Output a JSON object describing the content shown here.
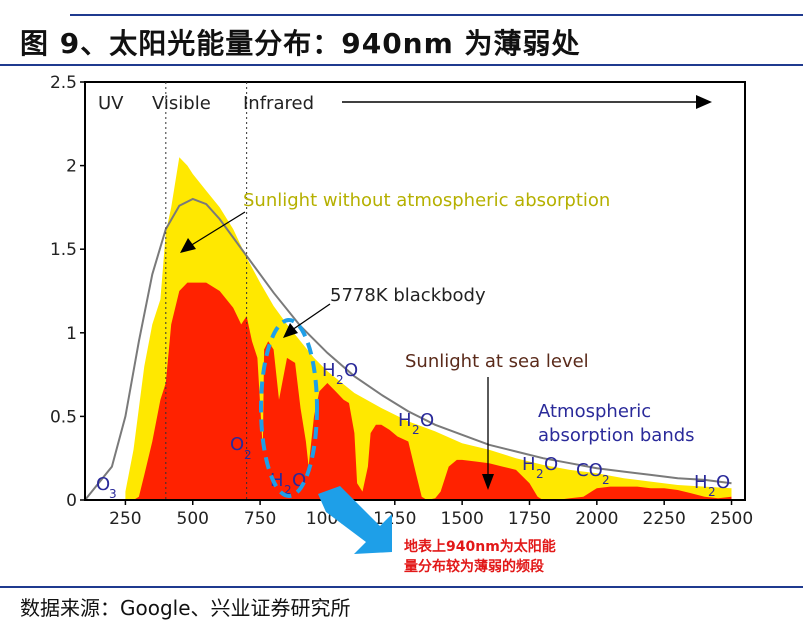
{
  "figure": {
    "title": "图 9、太阳光能量分布：940nm 为薄弱处",
    "source": "数据来源：Google、兴业证券研究所"
  },
  "chart_data": {
    "type": "area",
    "x_ticks": [
      250,
      500,
      750,
      1000,
      1250,
      1500,
      1750,
      2000,
      2250,
      2500
    ],
    "y_ticks": [
      0,
      0.5,
      1,
      1.5,
      2,
      2.5
    ],
    "xlim": [
      100,
      2550
    ],
    "ylim": [
      0,
      2.5
    ],
    "grid": false,
    "regions": {
      "uv": "UV",
      "visible": "Visible",
      "infrared": "Infrared",
      "uv_visible_boundary": 400,
      "visible_infrared_boundary": 700
    },
    "series": [
      {
        "name": "5778K blackbody",
        "color": "#7a7a7a",
        "x": [
          100,
          200,
          250,
          300,
          350,
          400,
          450,
          500,
          550,
          600,
          700,
          800,
          900,
          1000,
          1100,
          1200,
          1300,
          1400,
          1500,
          1600,
          1700,
          1800,
          1900,
          2000,
          2100,
          2200,
          2300,
          2400,
          2500
        ],
        "values": [
          0,
          0.2,
          0.5,
          0.95,
          1.35,
          1.62,
          1.76,
          1.8,
          1.77,
          1.68,
          1.46,
          1.24,
          1.04,
          0.88,
          0.74,
          0.63,
          0.53,
          0.45,
          0.39,
          0.33,
          0.29,
          0.25,
          0.22,
          0.19,
          0.17,
          0.15,
          0.13,
          0.12,
          0.1
        ]
      },
      {
        "name": "Sunlight without atmospheric absorption",
        "color": "#ffe800",
        "x": [
          250,
          280,
          300,
          320,
          350,
          380,
          400,
          420,
          450,
          480,
          500,
          550,
          600,
          650,
          700,
          750,
          800,
          850,
          900,
          950,
          1000,
          1100,
          1200,
          1300,
          1400,
          1500,
          1600,
          1700,
          1800,
          1900,
          2000,
          2100,
          2200,
          2300,
          2400,
          2500
        ],
        "values": [
          0.05,
          0.3,
          0.55,
          0.8,
          1.05,
          1.2,
          1.6,
          1.75,
          2.05,
          2.0,
          1.95,
          1.85,
          1.75,
          1.62,
          1.45,
          1.3,
          1.16,
          1.05,
          0.95,
          0.85,
          0.77,
          0.64,
          0.55,
          0.47,
          0.41,
          0.34,
          0.3,
          0.25,
          0.21,
          0.18,
          0.16,
          0.13,
          0.11,
          0.09,
          0.08,
          0.07
        ]
      },
      {
        "name": "Sunlight at sea level",
        "color": "#ff2200",
        "x": [
          250,
          280,
          300,
          320,
          350,
          380,
          400,
          420,
          450,
          480,
          500,
          550,
          600,
          650,
          680,
          700,
          720,
          740,
          760,
          765,
          780,
          800,
          820,
          850,
          880,
          900,
          920,
          930,
          950,
          970,
          1000,
          1030,
          1060,
          1080,
          1100,
          1110,
          1130,
          1150,
          1160,
          1180,
          1200,
          1230,
          1260,
          1300,
          1330,
          1350,
          1370,
          1400,
          1420,
          1450,
          1480,
          1500,
          1550,
          1600,
          1650,
          1700,
          1750,
          1780,
          1800,
          1820,
          1850,
          1900,
          1950,
          1980,
          2000,
          2050,
          2100,
          2150,
          2200,
          2250,
          2300,
          2350,
          2400,
          2450,
          2500
        ],
        "values": [
          0,
          0,
          0.02,
          0.15,
          0.35,
          0.6,
          0.7,
          1.05,
          1.25,
          1.3,
          1.3,
          1.3,
          1.25,
          1.15,
          1.05,
          1.1,
          0.95,
          0.85,
          0.3,
          0.9,
          0.95,
          0.9,
          0.6,
          0.85,
          0.82,
          0.55,
          0.35,
          0.2,
          0.5,
          0.65,
          0.7,
          0.65,
          0.6,
          0.58,
          0.4,
          0.1,
          0.05,
          0.2,
          0.4,
          0.45,
          0.45,
          0.42,
          0.38,
          0.35,
          0.15,
          0.02,
          0.0,
          0.01,
          0.05,
          0.2,
          0.24,
          0.24,
          0.23,
          0.22,
          0.2,
          0.18,
          0.1,
          0.02,
          0.0,
          0.0,
          0.0,
          0.01,
          0.02,
          0.05,
          0.07,
          0.08,
          0.08,
          0.08,
          0.07,
          0.07,
          0.06,
          0.04,
          0.02,
          0.01,
          0.02
        ]
      }
    ],
    "annotations": {
      "without_atm": "Sunlight without atmospheric absorption",
      "blackbody": "5778K blackbody",
      "sea_level": "Sunlight at sea level",
      "atm_bands_1": "Atmospheric",
      "atm_bands_2": "absorption bands",
      "o3": "O",
      "o3_sub": "3",
      "o2": "O",
      "o2_sub": "2",
      "h2o": "H",
      "h2o_sub": "2",
      "h2o_o": "O",
      "co2": "CO",
      "co2_sub": "2",
      "highlight_note_1": "地表上940nm为太阳能",
      "highlight_note_2": "量分布较为薄弱的频段"
    },
    "colors": {
      "axis": "#000000",
      "highlight": "#1e9fe8",
      "note": "#e21818"
    }
  }
}
